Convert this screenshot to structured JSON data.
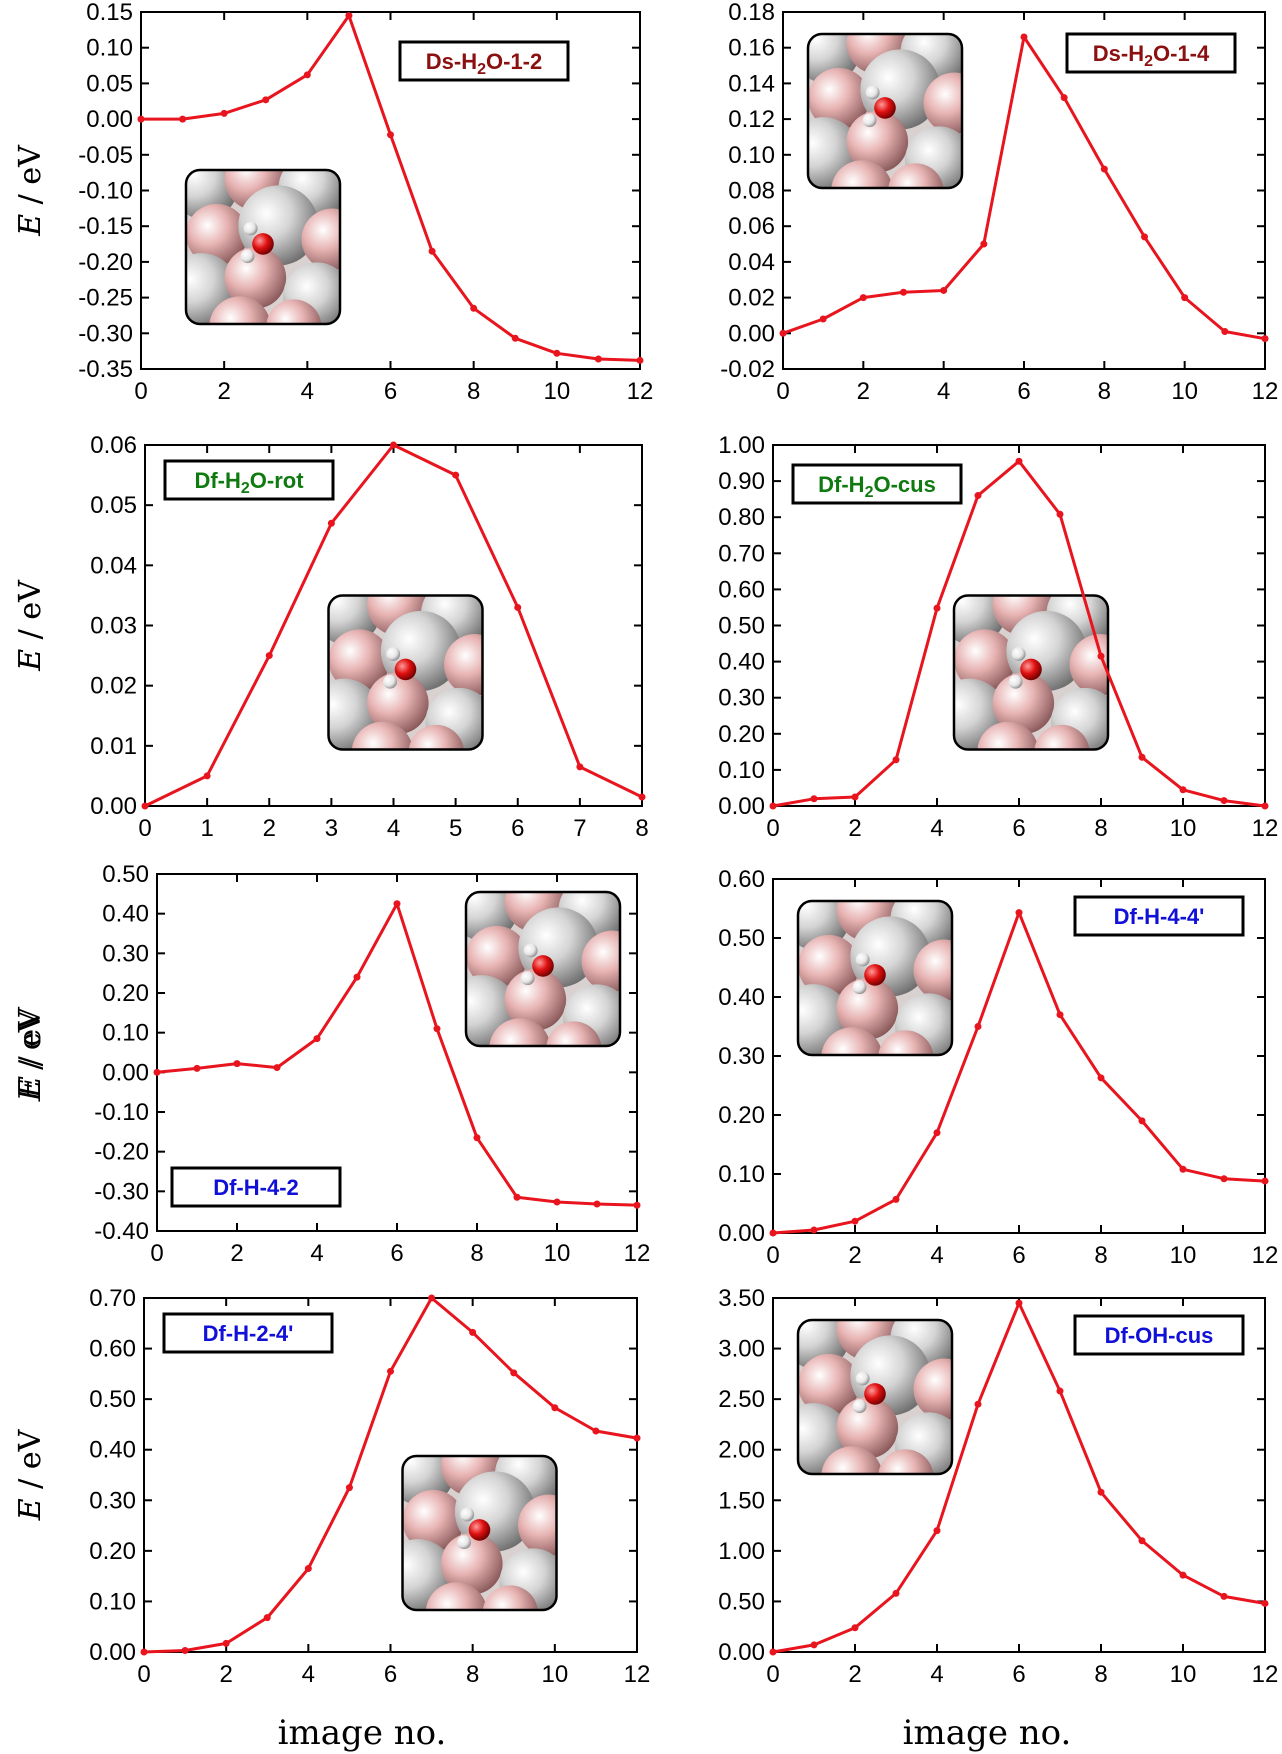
{
  "figure": {
    "xlabel": "image no.",
    "ylabel": "E / eV"
  },
  "colors": {
    "series": "#e8141e",
    "dark_red": "#8b1010",
    "green": "#0f7a0f",
    "blue": "#1010d8"
  },
  "chart_data": [
    {
      "type": "line",
      "title": "",
      "label_parts": [
        "Ds-H",
        "2",
        "O-1-2"
      ],
      "label_color": "#8b1010",
      "x": [
        0,
        1,
        2,
        3,
        4,
        5,
        6,
        7,
        8,
        9,
        10,
        11,
        12
      ],
      "y": [
        0.0,
        0.0,
        0.008,
        0.027,
        0.062,
        0.145,
        -0.022,
        -0.185,
        -0.265,
        -0.307,
        -0.328,
        -0.336,
        -0.338
      ],
      "xlim": [
        0,
        12
      ],
      "ylim": [
        -0.35,
        0.15
      ],
      "xticks": [
        0,
        2,
        4,
        6,
        8,
        10,
        12
      ],
      "yticks": [
        "0.15",
        "0.10",
        "0.05",
        "0.00",
        "-0.05",
        "-0.10",
        "-0.15",
        "-0.20",
        "-0.25",
        "-0.30",
        "-0.35"
      ],
      "label_position": "top-right",
      "inset_position": "left"
    },
    {
      "type": "line",
      "title": "",
      "label_parts": [
        "Ds-H",
        "2",
        "O-1-4"
      ],
      "label_color": "#8b1010",
      "x": [
        0,
        1,
        2,
        3,
        4,
        5,
        6,
        7,
        8,
        9,
        10,
        11,
        12
      ],
      "y": [
        0.0,
        0.008,
        0.02,
        0.023,
        0.024,
        0.05,
        0.166,
        0.132,
        0.092,
        0.054,
        0.02,
        0.001,
        -0.003
      ],
      "xlim": [
        0,
        12
      ],
      "ylim": [
        -0.02,
        0.18
      ],
      "xticks": [
        0,
        2,
        4,
        6,
        8,
        10,
        12
      ],
      "yticks": [
        "0.18",
        "0.16",
        "0.14",
        "0.12",
        "0.10",
        "0.08",
        "0.06",
        "0.04",
        "0.02",
        "0.00",
        "-0.02"
      ],
      "label_position": "top-right",
      "inset_position": "top-left"
    },
    {
      "type": "line",
      "title": "",
      "label_parts": [
        "Df-H",
        "2",
        "O-rot"
      ],
      "label_color": "#0f7a0f",
      "x": [
        0,
        1,
        2,
        3,
        4,
        5,
        6,
        7,
        8
      ],
      "y": [
        0.0,
        0.005,
        0.025,
        0.047,
        0.06,
        0.055,
        0.033,
        0.0065,
        0.0015
      ],
      "xlim": [
        0,
        8
      ],
      "ylim": [
        0,
        0.06
      ],
      "xticks": [
        0,
        1,
        2,
        3,
        4,
        5,
        6,
        7,
        8
      ],
      "yticks": [
        "0.06",
        "0.05",
        "0.04",
        "0.03",
        "0.02",
        "0.01",
        "0.00"
      ],
      "label_position": "top-left",
      "inset_position": "center"
    },
    {
      "type": "line",
      "title": "",
      "label_parts": [
        "Df-H",
        "2",
        "O-cus"
      ],
      "label_color": "#0f7a0f",
      "x": [
        0,
        1,
        2,
        3,
        4,
        5,
        6,
        7,
        8,
        9,
        10,
        11,
        12
      ],
      "y": [
        0.0,
        0.02,
        0.025,
        0.128,
        0.548,
        0.86,
        0.955,
        0.808,
        0.415,
        0.135,
        0.045,
        0.015,
        0.0
      ],
      "xlim": [
        0,
        12
      ],
      "ylim": [
        0,
        1.0
      ],
      "xticks": [
        0,
        2,
        4,
        6,
        8,
        10,
        12
      ],
      "yticks": [
        "1.00",
        "0.90",
        "0.80",
        "0.70",
        "0.60",
        "0.50",
        "0.40",
        "0.30",
        "0.20",
        "0.10",
        "0.00"
      ],
      "label_position": "top-left",
      "inset_position": "center"
    },
    {
      "type": "line",
      "title": "",
      "label_parts": [
        "Df-H-4-2"
      ],
      "label_color": "#1010d8",
      "x": [
        0,
        1,
        2,
        3,
        4,
        5,
        6,
        7,
        8,
        9,
        10,
        11,
        12
      ],
      "y": [
        0.0,
        0.01,
        0.022,
        0.012,
        0.085,
        0.24,
        0.425,
        0.11,
        -0.165,
        -0.315,
        -0.327,
        -0.332,
        -0.335
      ],
      "xlim": [
        0,
        12
      ],
      "ylim": [
        -0.4,
        0.5
      ],
      "xticks": [
        0,
        2,
        4,
        6,
        8,
        10,
        12
      ],
      "yticks": [
        "0.50",
        "0.40",
        "0.30",
        "0.20",
        "0.10",
        "0.00",
        "-0.10",
        "-0.20",
        "-0.30",
        "-0.40"
      ],
      "label_position": "bottom-left",
      "inset_position": "top-right"
    },
    {
      "type": "line",
      "title": "",
      "label_parts": [
        "Df-H-4-4'"
      ],
      "label_color": "#1010d8",
      "x": [
        0,
        1,
        2,
        3,
        4,
        5,
        6,
        7,
        8,
        9,
        10,
        11,
        12
      ],
      "y": [
        0.0,
        0.005,
        0.02,
        0.057,
        0.17,
        0.35,
        0.543,
        0.37,
        0.263,
        0.19,
        0.108,
        0.092,
        0.088
      ],
      "xlim": [
        0,
        12
      ],
      "ylim": [
        0,
        0.6
      ],
      "xticks": [
        0,
        2,
        4,
        6,
        8,
        10,
        12
      ],
      "yticks": [
        "0.60",
        "0.50",
        "0.40",
        "0.30",
        "0.20",
        "0.10",
        "0.00"
      ],
      "label_position": "top-right",
      "inset_position": "top-left"
    },
    {
      "type": "line",
      "title": "",
      "label_parts": [
        "Df-H-2-4'"
      ],
      "label_color": "#1010d8",
      "x": [
        0,
        1,
        2,
        3,
        4,
        5,
        6,
        7,
        8,
        9,
        10,
        11,
        12
      ],
      "y": [
        0.0,
        0.003,
        0.017,
        0.068,
        0.165,
        0.325,
        0.555,
        0.7,
        0.632,
        0.552,
        0.483,
        0.437,
        0.423
      ],
      "xlim": [
        0,
        12
      ],
      "ylim": [
        0,
        0.7
      ],
      "xticks": [
        0,
        2,
        4,
        6,
        8,
        10,
        12
      ],
      "yticks": [
        "0.70",
        "0.60",
        "0.50",
        "0.40",
        "0.30",
        "0.20",
        "0.10",
        "0.00"
      ],
      "label_position": "top-left",
      "inset_position": "bottom-center"
    },
    {
      "type": "line",
      "title": "",
      "label_parts": [
        "Df-OH-cus"
      ],
      "label_color": "#1010d8",
      "x": [
        0,
        1,
        2,
        3,
        4,
        5,
        6,
        7,
        8,
        9,
        10,
        11,
        12
      ],
      "y": [
        0.0,
        0.07,
        0.24,
        0.58,
        1.2,
        2.45,
        3.45,
        2.58,
        1.58,
        1.1,
        0.76,
        0.55,
        0.48
      ],
      "xlim": [
        0,
        12
      ],
      "ylim": [
        0,
        3.5
      ],
      "xticks": [
        0,
        2,
        4,
        6,
        8,
        10,
        12
      ],
      "yticks": [
        "3.50",
        "3.00",
        "2.50",
        "2.00",
        "1.50",
        "1.00",
        "0.50",
        "0.00"
      ],
      "label_position": "top-right",
      "inset_position": "top-left"
    }
  ]
}
